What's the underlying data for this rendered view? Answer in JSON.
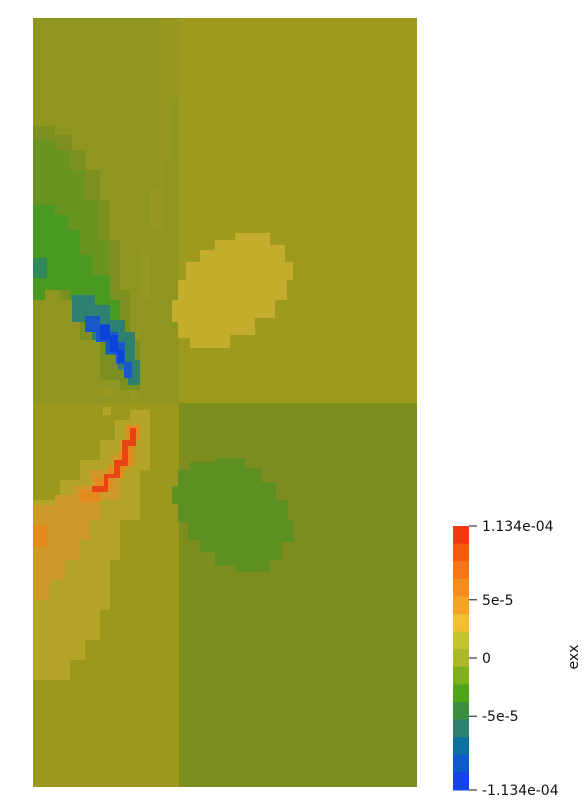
{
  "colorbar": {
    "title": "exx",
    "range": [
      -0.0001134,
      0.0001134
    ],
    "ticks": [
      {
        "value": 0.0001134,
        "label": "1.134e-04"
      },
      {
        "value": 5e-05,
        "label": "5e-5"
      },
      {
        "value": 0,
        "label": "0"
      },
      {
        "value": -5e-05,
        "label": "-5e-5"
      },
      {
        "value": -0.0001134,
        "label": "-1.134e-04"
      }
    ],
    "colors_top_to_bottom": [
      "#f03a10",
      "#f35a10",
      "#f7761a",
      "#f58e1e",
      "#f5a326",
      "#f4be34",
      "#c4c230",
      "#a9b728",
      "#7eb01e",
      "#4ea51a",
      "#3a9040",
      "#2e8070",
      "#0c70a0",
      "#0c5bc8",
      "#1444e8"
    ]
  },
  "field_colors": {
    "olive_bright": "#9d9a1e",
    "olive_mid": "#8d9320",
    "olive_dark": "#7e8e1e",
    "green": "#5c9020",
    "green_deep": "#3a8a22",
    "teal": "#2e7e70",
    "blue": "#1858c8",
    "blue_deep": "#0c44d8",
    "yellow": "#c4ac2c",
    "orange_light": "#d09a2a",
    "orange": "#e48a1e",
    "orange_deep": "#ea6018",
    "red": "#e84414"
  }
}
